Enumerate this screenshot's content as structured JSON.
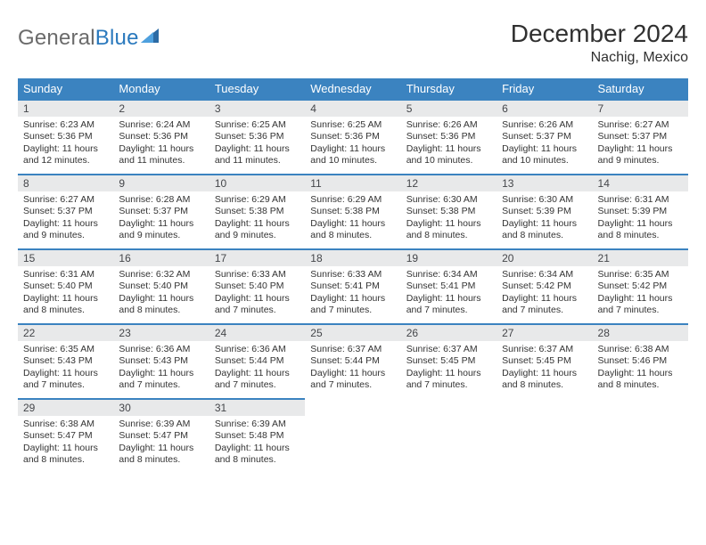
{
  "brand": {
    "part1": "General",
    "part2": "Blue",
    "logo_color_dark": "#2b6aa4",
    "logo_color_light": "#4ea0de"
  },
  "title": {
    "month": "December 2024",
    "location": "Nachig, Mexico"
  },
  "calendar": {
    "header_bg": "#3b83c0",
    "header_text_color": "#ffffff",
    "daynum_bg": "#e8e9ea",
    "daynum_border": "#3b83c0",
    "body_text_color": "#333333",
    "day_headers": [
      "Sunday",
      "Monday",
      "Tuesday",
      "Wednesday",
      "Thursday",
      "Friday",
      "Saturday"
    ],
    "weeks": [
      [
        {
          "num": "1",
          "sunrise": "Sunrise: 6:23 AM",
          "sunset": "Sunset: 5:36 PM",
          "daylight": "Daylight: 11 hours and 12 minutes."
        },
        {
          "num": "2",
          "sunrise": "Sunrise: 6:24 AM",
          "sunset": "Sunset: 5:36 PM",
          "daylight": "Daylight: 11 hours and 11 minutes."
        },
        {
          "num": "3",
          "sunrise": "Sunrise: 6:25 AM",
          "sunset": "Sunset: 5:36 PM",
          "daylight": "Daylight: 11 hours and 11 minutes."
        },
        {
          "num": "4",
          "sunrise": "Sunrise: 6:25 AM",
          "sunset": "Sunset: 5:36 PM",
          "daylight": "Daylight: 11 hours and 10 minutes."
        },
        {
          "num": "5",
          "sunrise": "Sunrise: 6:26 AM",
          "sunset": "Sunset: 5:36 PM",
          "daylight": "Daylight: 11 hours and 10 minutes."
        },
        {
          "num": "6",
          "sunrise": "Sunrise: 6:26 AM",
          "sunset": "Sunset: 5:37 PM",
          "daylight": "Daylight: 11 hours and 10 minutes."
        },
        {
          "num": "7",
          "sunrise": "Sunrise: 6:27 AM",
          "sunset": "Sunset: 5:37 PM",
          "daylight": "Daylight: 11 hours and 9 minutes."
        }
      ],
      [
        {
          "num": "8",
          "sunrise": "Sunrise: 6:27 AM",
          "sunset": "Sunset: 5:37 PM",
          "daylight": "Daylight: 11 hours and 9 minutes."
        },
        {
          "num": "9",
          "sunrise": "Sunrise: 6:28 AM",
          "sunset": "Sunset: 5:37 PM",
          "daylight": "Daylight: 11 hours and 9 minutes."
        },
        {
          "num": "10",
          "sunrise": "Sunrise: 6:29 AM",
          "sunset": "Sunset: 5:38 PM",
          "daylight": "Daylight: 11 hours and 9 minutes."
        },
        {
          "num": "11",
          "sunrise": "Sunrise: 6:29 AM",
          "sunset": "Sunset: 5:38 PM",
          "daylight": "Daylight: 11 hours and 8 minutes."
        },
        {
          "num": "12",
          "sunrise": "Sunrise: 6:30 AM",
          "sunset": "Sunset: 5:38 PM",
          "daylight": "Daylight: 11 hours and 8 minutes."
        },
        {
          "num": "13",
          "sunrise": "Sunrise: 6:30 AM",
          "sunset": "Sunset: 5:39 PM",
          "daylight": "Daylight: 11 hours and 8 minutes."
        },
        {
          "num": "14",
          "sunrise": "Sunrise: 6:31 AM",
          "sunset": "Sunset: 5:39 PM",
          "daylight": "Daylight: 11 hours and 8 minutes."
        }
      ],
      [
        {
          "num": "15",
          "sunrise": "Sunrise: 6:31 AM",
          "sunset": "Sunset: 5:40 PM",
          "daylight": "Daylight: 11 hours and 8 minutes."
        },
        {
          "num": "16",
          "sunrise": "Sunrise: 6:32 AM",
          "sunset": "Sunset: 5:40 PM",
          "daylight": "Daylight: 11 hours and 8 minutes."
        },
        {
          "num": "17",
          "sunrise": "Sunrise: 6:33 AM",
          "sunset": "Sunset: 5:40 PM",
          "daylight": "Daylight: 11 hours and 7 minutes."
        },
        {
          "num": "18",
          "sunrise": "Sunrise: 6:33 AM",
          "sunset": "Sunset: 5:41 PM",
          "daylight": "Daylight: 11 hours and 7 minutes."
        },
        {
          "num": "19",
          "sunrise": "Sunrise: 6:34 AM",
          "sunset": "Sunset: 5:41 PM",
          "daylight": "Daylight: 11 hours and 7 minutes."
        },
        {
          "num": "20",
          "sunrise": "Sunrise: 6:34 AM",
          "sunset": "Sunset: 5:42 PM",
          "daylight": "Daylight: 11 hours and 7 minutes."
        },
        {
          "num": "21",
          "sunrise": "Sunrise: 6:35 AM",
          "sunset": "Sunset: 5:42 PM",
          "daylight": "Daylight: 11 hours and 7 minutes."
        }
      ],
      [
        {
          "num": "22",
          "sunrise": "Sunrise: 6:35 AM",
          "sunset": "Sunset: 5:43 PM",
          "daylight": "Daylight: 11 hours and 7 minutes."
        },
        {
          "num": "23",
          "sunrise": "Sunrise: 6:36 AM",
          "sunset": "Sunset: 5:43 PM",
          "daylight": "Daylight: 11 hours and 7 minutes."
        },
        {
          "num": "24",
          "sunrise": "Sunrise: 6:36 AM",
          "sunset": "Sunset: 5:44 PM",
          "daylight": "Daylight: 11 hours and 7 minutes."
        },
        {
          "num": "25",
          "sunrise": "Sunrise: 6:37 AM",
          "sunset": "Sunset: 5:44 PM",
          "daylight": "Daylight: 11 hours and 7 minutes."
        },
        {
          "num": "26",
          "sunrise": "Sunrise: 6:37 AM",
          "sunset": "Sunset: 5:45 PM",
          "daylight": "Daylight: 11 hours and 7 minutes."
        },
        {
          "num": "27",
          "sunrise": "Sunrise: 6:37 AM",
          "sunset": "Sunset: 5:45 PM",
          "daylight": "Daylight: 11 hours and 8 minutes."
        },
        {
          "num": "28",
          "sunrise": "Sunrise: 6:38 AM",
          "sunset": "Sunset: 5:46 PM",
          "daylight": "Daylight: 11 hours and 8 minutes."
        }
      ],
      [
        {
          "num": "29",
          "sunrise": "Sunrise: 6:38 AM",
          "sunset": "Sunset: 5:47 PM",
          "daylight": "Daylight: 11 hours and 8 minutes."
        },
        {
          "num": "30",
          "sunrise": "Sunrise: 6:39 AM",
          "sunset": "Sunset: 5:47 PM",
          "daylight": "Daylight: 11 hours and 8 minutes."
        },
        {
          "num": "31",
          "sunrise": "Sunrise: 6:39 AM",
          "sunset": "Sunset: 5:48 PM",
          "daylight": "Daylight: 11 hours and 8 minutes."
        },
        null,
        null,
        null,
        null
      ]
    ]
  }
}
